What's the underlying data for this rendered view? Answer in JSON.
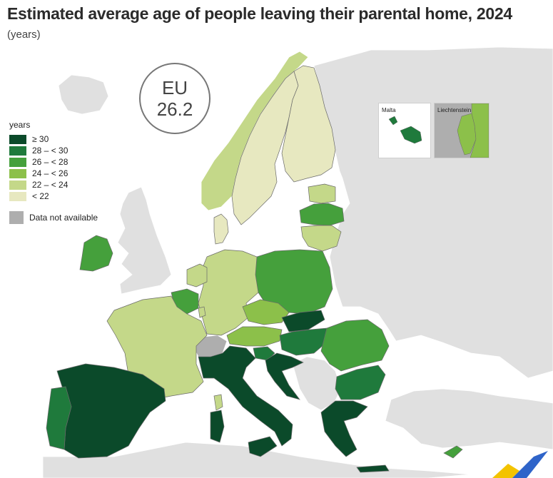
{
  "title": "Estimated average age of people leaving their parental home, 2024",
  "subtitle": "(years)",
  "eu_badge": {
    "label": "EU",
    "value": "26.2"
  },
  "legend": {
    "title": "years",
    "classes": [
      {
        "label": "≥ 30",
        "color": "#0b4a2a"
      },
      {
        "label": "28 – < 30",
        "color": "#1f7a3c"
      },
      {
        "label": "26 – < 28",
        "color": "#45a03c"
      },
      {
        "label": "24 – < 26",
        "color": "#8cc04a"
      },
      {
        "label": "22 – < 24",
        "color": "#c4d889"
      },
      {
        "label": "< 22",
        "color": "#e7e8c0"
      }
    ],
    "na_label": "Data not available",
    "na_color": "#aeaeae"
  },
  "insets": {
    "malta_label": "Malta",
    "liechtenstein_label": "Liechtenstein"
  },
  "colors": {
    "non_eu": "#e0e0e0",
    "sea": "#ffffff",
    "border": "#6a6a6a"
  }
}
